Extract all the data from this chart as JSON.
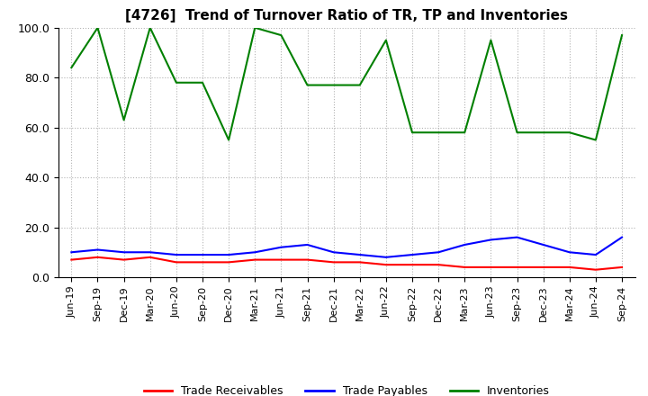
{
  "title": "[4726]  Trend of Turnover Ratio of TR, TP and Inventories",
  "ylim": [
    0,
    100
  ],
  "yticks": [
    0.0,
    20.0,
    40.0,
    60.0,
    80.0,
    100.0
  ],
  "legend_labels": [
    "Trade Receivables",
    "Trade Payables",
    "Inventories"
  ],
  "legend_colors": [
    "#ff0000",
    "#0000ff",
    "#008000"
  ],
  "x_labels": [
    "Jun-19",
    "Sep-19",
    "Dec-19",
    "Mar-20",
    "Jun-20",
    "Sep-20",
    "Dec-20",
    "Mar-21",
    "Jun-21",
    "Sep-21",
    "Dec-21",
    "Mar-22",
    "Jun-22",
    "Sep-22",
    "Dec-22",
    "Mar-23",
    "Jun-23",
    "Sep-23",
    "Dec-23",
    "Mar-24",
    "Jun-24",
    "Sep-24"
  ],
  "trade_receivables": [
    7,
    8,
    7,
    8,
    6,
    6,
    6,
    7,
    7,
    7,
    6,
    6,
    5,
    5,
    5,
    4,
    4,
    4,
    4,
    4,
    3,
    4
  ],
  "trade_payables": [
    10,
    11,
    10,
    10,
    9,
    9,
    9,
    10,
    12,
    13,
    10,
    9,
    8,
    9,
    10,
    13,
    15,
    16,
    13,
    10,
    9,
    16
  ],
  "inventories": [
    84,
    100,
    63,
    100,
    78,
    78,
    55,
    100,
    97,
    77,
    77,
    77,
    95,
    58,
    58,
    58,
    95,
    58,
    58,
    58,
    55,
    97
  ]
}
